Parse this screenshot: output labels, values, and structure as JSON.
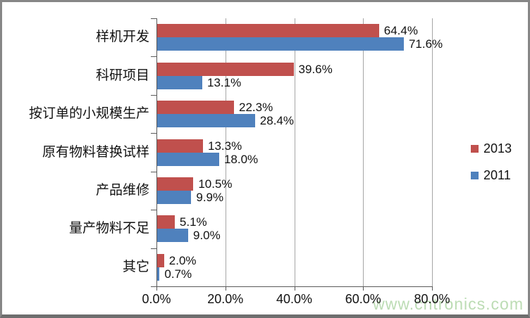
{
  "chart_data": {
    "type": "bar",
    "orientation": "horizontal",
    "categories": [
      "样机开发",
      "科研项目",
      "按订单的小规模生产",
      "原有物料替换试样",
      "产品维修",
      "量产物料不足",
      "其它"
    ],
    "series": [
      {
        "name": "2013",
        "color": "#C0504D",
        "values": [
          64.4,
          39.6,
          22.3,
          13.3,
          10.5,
          5.1,
          2.0
        ],
        "labels": [
          "64.4%",
          "39.6%",
          "22.3%",
          "13.3%",
          "10.5%",
          "5.1%",
          "2.0%"
        ]
      },
      {
        "name": "2011",
        "color": "#4F81BD",
        "values": [
          71.6,
          13.1,
          28.4,
          18.0,
          9.9,
          9.0,
          0.7
        ],
        "labels": [
          "71.6%",
          "13.1%",
          "28.4%",
          "18.0%",
          "9.9%",
          "9.0%",
          "0.7%"
        ]
      }
    ],
    "x_axis": {
      "min": 0,
      "max": 80,
      "tick_values": [
        0,
        20,
        40,
        60,
        80
      ],
      "tick_labels": [
        "0.0%",
        "20.0%",
        "40.0%",
        "60.0%",
        "80.0%"
      ],
      "gridlines": true
    },
    "legend": {
      "position": "right",
      "entries": [
        {
          "label": "2013",
          "color": "#C0504D"
        },
        {
          "label": "2011",
          "color": "#4F81BD"
        }
      ]
    },
    "colors": {
      "gridline": "#a6a6a6",
      "axis": "#595959",
      "text": "#121212"
    }
  },
  "watermark": {
    "text": "www.cntronics.com",
    "color": "#bcdcb4"
  }
}
